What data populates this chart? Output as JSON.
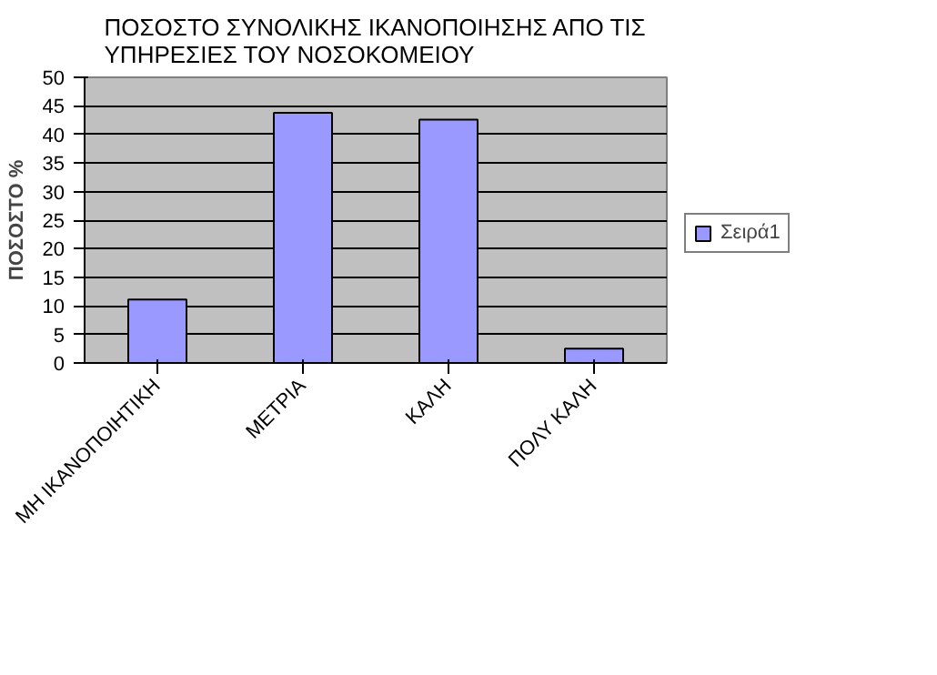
{
  "chart_data": {
    "type": "bar",
    "title": "ΠΟΣΟΣΤΟ ΣΥΝΟΛΙΚΗΣ ΙΚΑΝΟΠΟΙΗΣΗΣ ΑΠΟ ΤΙΣ\nΥΠΗΡΕΣΙΕΣ ΤΟΥ ΝΟΣΟΚΟΜΕΙΟΥ",
    "ylabel": "ΠΟΣΟΣΤΟ %",
    "categories": [
      "ΜΗ ΙΚΑΝΟΠΟΙΗΤΙΚΗ",
      "ΜΕΤΡΙΑ",
      "ΚΑΛΗ",
      "ΠΟΛΥ ΚΑΛΗ"
    ],
    "series": [
      {
        "name": "Σειρά1",
        "color": "#9999ff",
        "values": [
          11.1,
          43.8,
          42.6,
          2.5
        ]
      }
    ],
    "ylim": [
      0,
      50
    ],
    "yticks": [
      0,
      5,
      10,
      15,
      20,
      25,
      30,
      35,
      40,
      45,
      50
    ],
    "grid": "y",
    "legend": "right"
  }
}
